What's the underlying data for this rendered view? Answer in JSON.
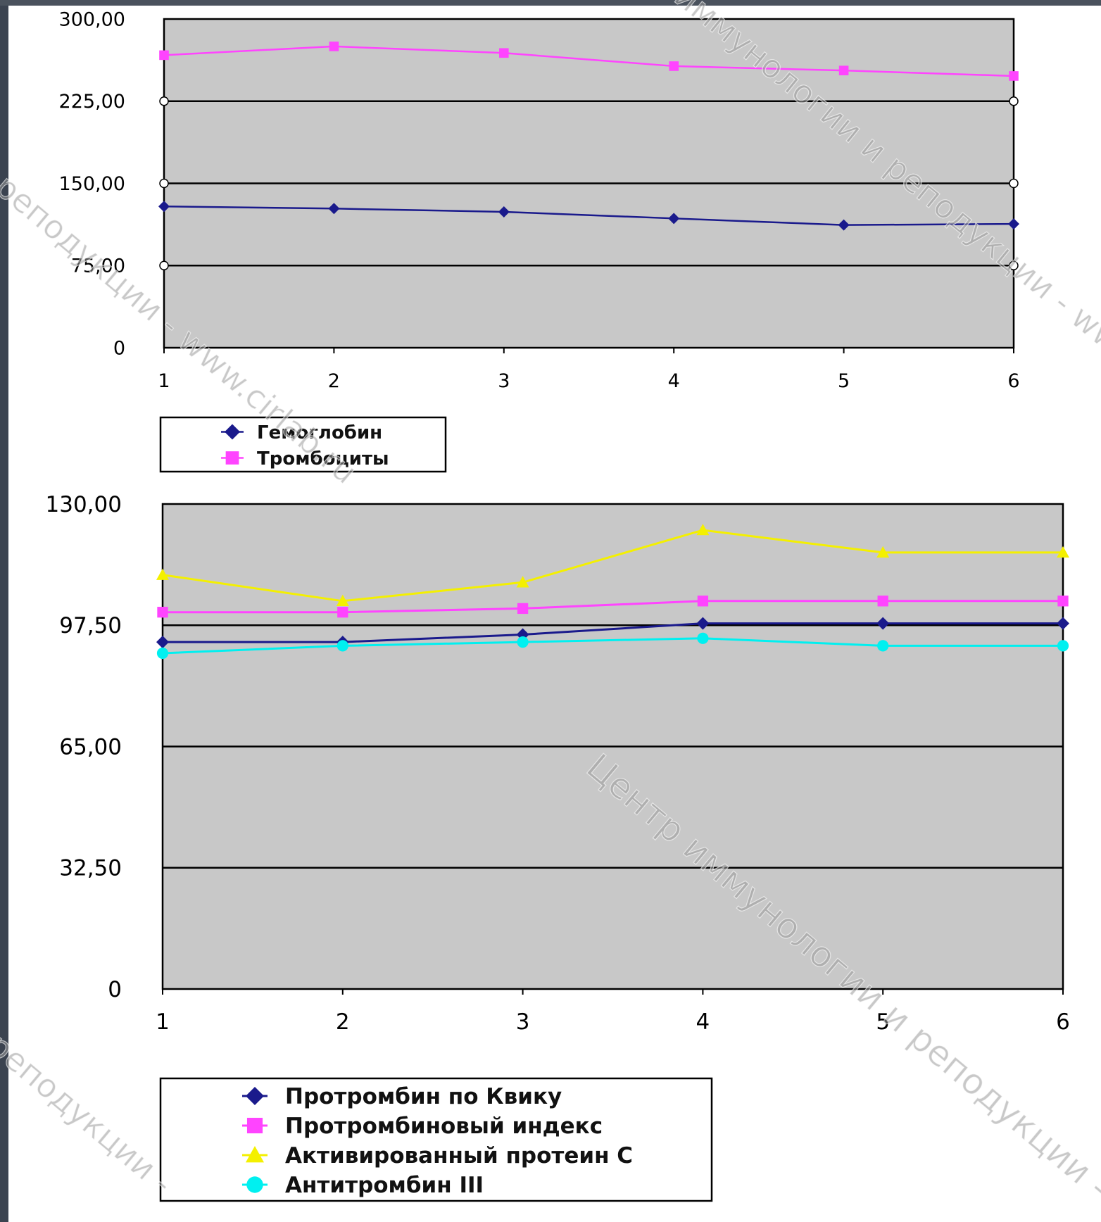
{
  "colors": {
    "background": "#ffffff",
    "frame_left": "#3b4350",
    "frame_top": "#4a525d",
    "plot_bg": "#c8c8c8",
    "grid": "#000000",
    "watermark": "#9a9a9a",
    "legend_border": "#000000"
  },
  "watermark": {
    "lines": [
      "иммунологии и реподукции - www.",
      "реподукции - www.cirlab.ru",
      "Центр иммунологии и реподукции -",
      "реподукции -"
    ]
  },
  "chart_data": [
    {
      "type": "line",
      "title": "",
      "xlabel": "",
      "ylabel": "",
      "categories": [
        "1",
        "2",
        "3",
        "4",
        "5",
        "6"
      ],
      "ylim": [
        0,
        300
      ],
      "ytick_labels": [
        "0",
        "75,00",
        "150,00",
        "225,00",
        "300,00"
      ],
      "ytick_values": [
        0,
        75,
        150,
        225,
        300
      ],
      "grid": true,
      "legend_position": "bottom-left",
      "series": [
        {
          "name": "Гемоглобин",
          "color": "#1a1a8c",
          "marker": "diamond",
          "values": [
            129,
            127,
            124,
            118,
            112,
            113
          ]
        },
        {
          "name": "Тромбоциты",
          "color": "#ff44ff",
          "marker": "square",
          "values": [
            267,
            275,
            269,
            257,
            253,
            248
          ]
        }
      ]
    },
    {
      "type": "line",
      "title": "",
      "xlabel": "",
      "ylabel": "",
      "categories": [
        "1",
        "2",
        "3",
        "4",
        "5",
        "6"
      ],
      "ylim": [
        0,
        130
      ],
      "ytick_labels": [
        "0",
        "32,50",
        "65,00",
        "97,50",
        "130,00"
      ],
      "ytick_values": [
        0,
        32.5,
        65,
        97.5,
        130
      ],
      "grid": true,
      "legend_position": "bottom-left",
      "series": [
        {
          "name": "Протромбин по Квику",
          "color": "#1a1a8c",
          "marker": "diamond",
          "values": [
            93,
            93,
            95,
            98,
            98,
            98
          ]
        },
        {
          "name": "Протромбиновый индекс",
          "color": "#ff44ff",
          "marker": "square",
          "values": [
            101,
            101,
            102,
            104,
            104,
            104
          ]
        },
        {
          "name": "Активированный протеин С",
          "color": "#f4f000",
          "marker": "triangle",
          "values": [
            111,
            104,
            109,
            123,
            117,
            117
          ]
        },
        {
          "name": "Антитромбин III",
          "color": "#00f0f0",
          "marker": "circle",
          "values": [
            90,
            92,
            93,
            94,
            92,
            92
          ]
        }
      ]
    }
  ]
}
